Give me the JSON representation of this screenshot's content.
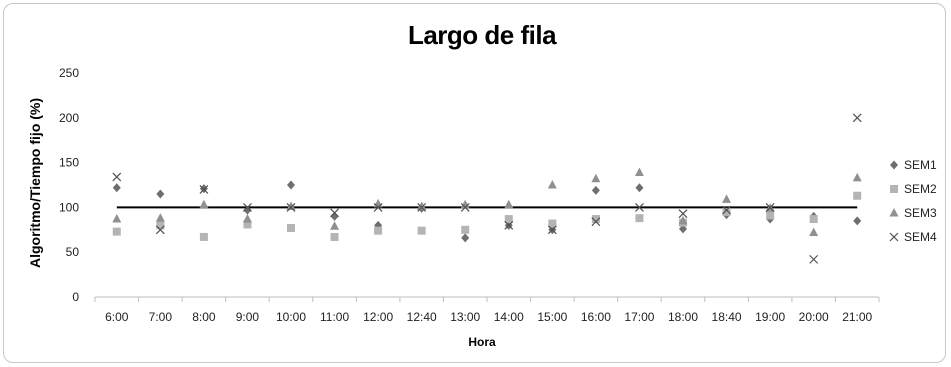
{
  "chart_data": {
    "type": "scatter",
    "title": "Largo de fila",
    "xlabel": "Hora",
    "ylabel": "Algoritmo/Tiempo fijo (%)",
    "ylim": [
      0,
      250
    ],
    "yticks": [
      0,
      50,
      100,
      150,
      200,
      250
    ],
    "categories": [
      "6:00",
      "7:00",
      "8:00",
      "9:00",
      "10:00",
      "11:00",
      "12:00",
      "12:40",
      "13:00",
      "14:00",
      "15:00",
      "16:00",
      "17:00",
      "18:00",
      "18:40",
      "19:00",
      "20:00",
      "21:00"
    ],
    "reference_line": 100,
    "grid": false,
    "legend_position": "right",
    "series": [
      {
        "name": "SEM1",
        "marker": "diamond",
        "color": "#6e6e6e",
        "values": [
          122,
          115,
          121,
          97,
          125,
          90,
          80,
          99,
          66,
          80,
          75,
          119,
          122,
          76,
          92,
          87,
          90,
          85
        ]
      },
      {
        "name": "SEM2",
        "marker": "square",
        "color": "#b4b4b4",
        "values": [
          73,
          80,
          67,
          81,
          77,
          67,
          74,
          74,
          75,
          87,
          82,
          87,
          88,
          83,
          95,
          91,
          87,
          113
        ]
      },
      {
        "name": "SEM3",
        "marker": "triangle",
        "color": "#909090",
        "values": [
          87,
          88,
          103,
          87,
          101,
          79,
          104,
          101,
          103,
          103,
          125,
          132,
          139,
          85,
          109,
          99,
          72,
          133
        ]
      },
      {
        "name": "SEM4",
        "marker": "x",
        "color": "#505050",
        "values": [
          134,
          75,
          120,
          100,
          100,
          94,
          100,
          100,
          100,
          80,
          75,
          84,
          100,
          93,
          97,
          100,
          42,
          200
        ]
      }
    ]
  }
}
